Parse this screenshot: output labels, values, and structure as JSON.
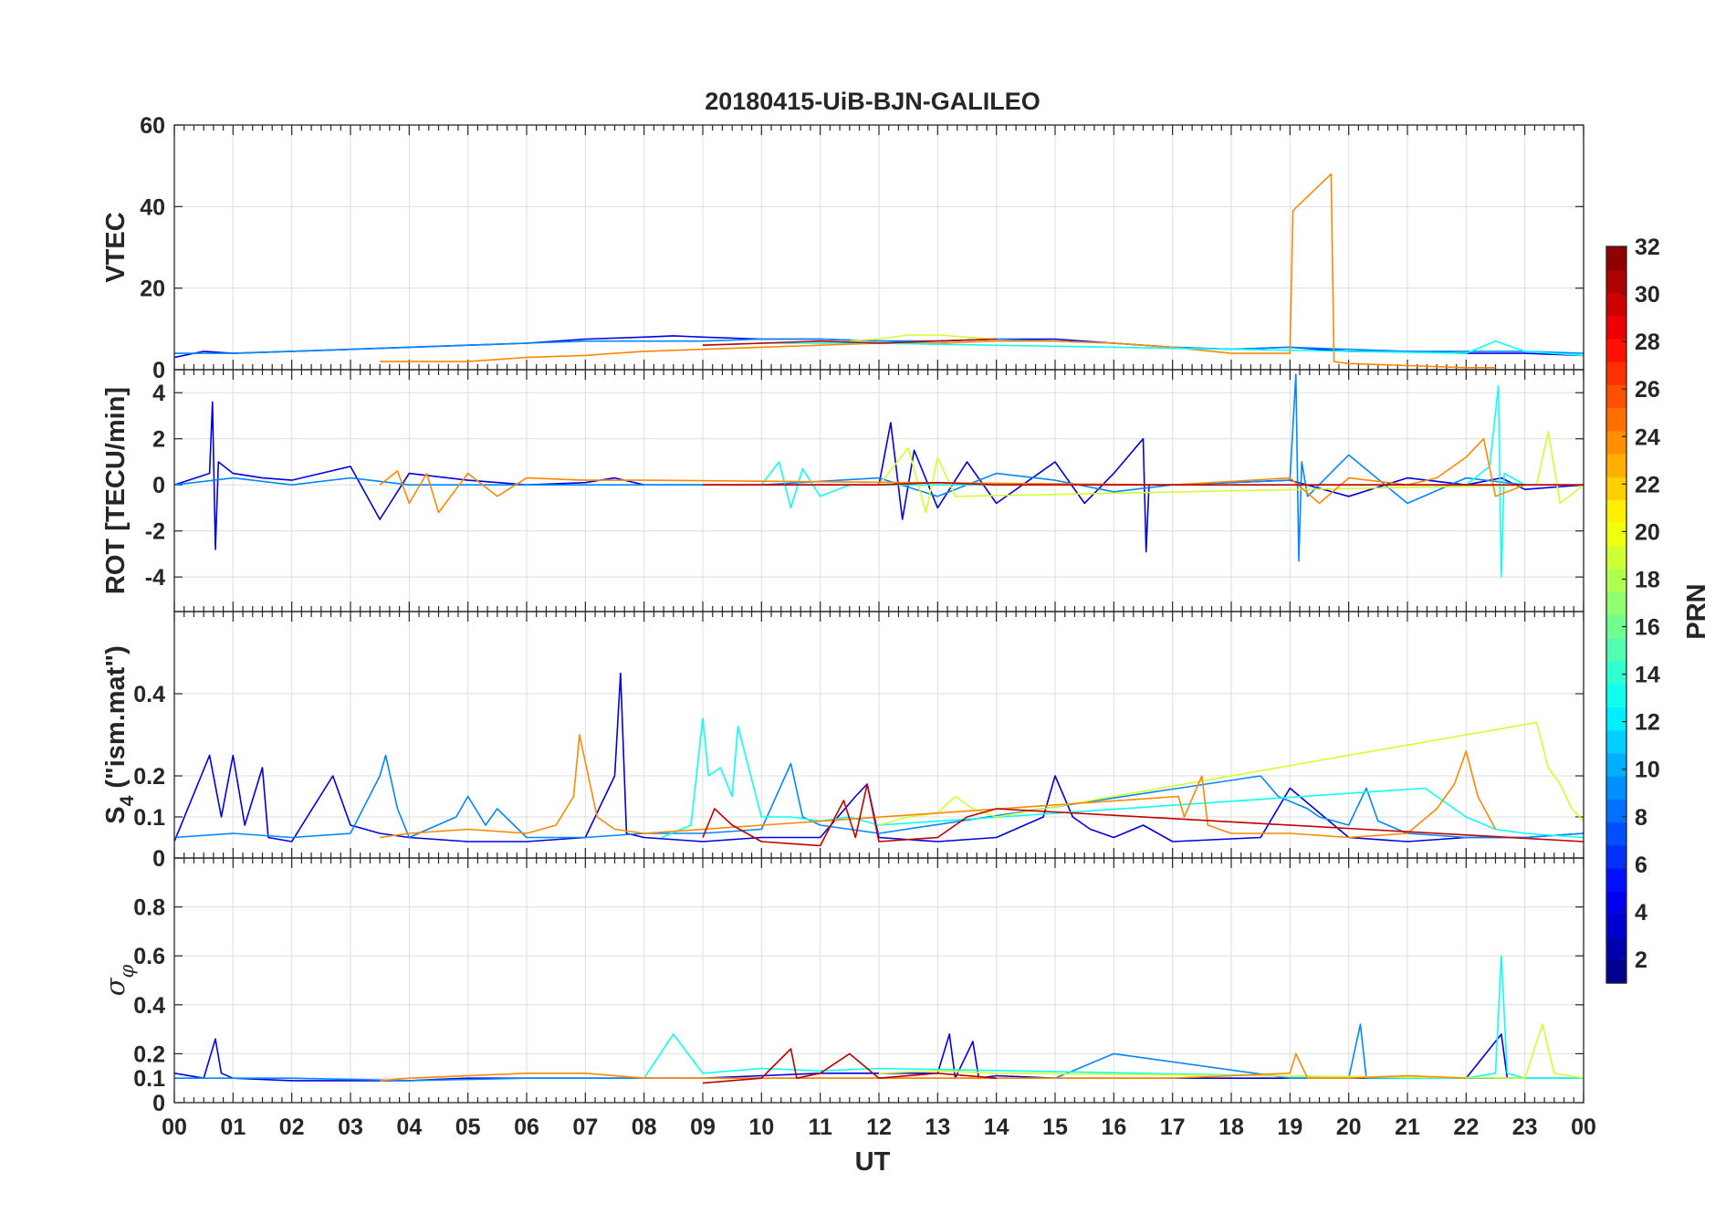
{
  "figure": {
    "title": "20180415-UiB-BJN-GALILEO",
    "xlabel": "UT",
    "x_ticks": [
      "00",
      "01",
      "02",
      "03",
      "04",
      "05",
      "06",
      "07",
      "08",
      "09",
      "10",
      "11",
      "12",
      "13",
      "14",
      "15",
      "16",
      "17",
      "18",
      "19",
      "20",
      "21",
      "22",
      "23",
      "00"
    ]
  },
  "colorbar": {
    "label": "PRN",
    "range": [
      1,
      32
    ],
    "ticks": [
      "2",
      "4",
      "6",
      "8",
      "10",
      "12",
      "14",
      "16",
      "18",
      "20",
      "22",
      "24",
      "26",
      "28",
      "30",
      "32"
    ],
    "colormap": "jet",
    "levels": 32
  },
  "chart_data": [
    {
      "type": "line",
      "panel": "vtec",
      "ylabel": "VTEC",
      "xlim": [
        0,
        24
      ],
      "ylim": [
        0,
        60
      ],
      "y_ticks": [
        "0",
        "20",
        "40",
        "60"
      ],
      "series": [
        {
          "name": "PRN 4",
          "prn": 4,
          "x": [
            0,
            0.5,
            1,
            2,
            3,
            4,
            5,
            6,
            7,
            8,
            8.5,
            9,
            10,
            11,
            12,
            13,
            14,
            15,
            16,
            17,
            18,
            19,
            20,
            21,
            22,
            23,
            24
          ],
          "y": [
            3,
            4.5,
            4,
            4.5,
            5,
            5.5,
            6,
            6.5,
            7.5,
            8,
            8.3,
            8,
            7.5,
            7.5,
            7,
            7,
            7.5,
            7.5,
            6.5,
            5.5,
            5,
            5.5,
            4.5,
            4.5,
            4,
            4,
            3.5
          ]
        },
        {
          "name": "PRN 9",
          "prn": 9,
          "x": [
            0,
            1,
            2,
            3,
            4,
            5,
            6,
            7,
            8,
            9,
            10,
            11,
            12,
            13,
            14,
            15,
            16,
            17,
            18,
            19,
            20,
            21,
            22,
            23,
            24
          ],
          "y": [
            4,
            4,
            4.5,
            5,
            5.5,
            6,
            6.5,
            7,
            7,
            7,
            7.5,
            7.5,
            7,
            7,
            7.5,
            7,
            6.5,
            5.5,
            5,
            5.5,
            5,
            4.5,
            4.5,
            4.5,
            4
          ]
        },
        {
          "name": "PRN 24",
          "prn": 24,
          "x": [
            3.5,
            4,
            5,
            6,
            7,
            7.5,
            8,
            9,
            10,
            11,
            12,
            13,
            14,
            15,
            16,
            17,
            18,
            19,
            19.05,
            19.7,
            19.72,
            19.75,
            20,
            21,
            22,
            22.5
          ],
          "y": [
            2,
            2,
            2,
            3,
            3.5,
            4,
            4.5,
            5,
            5.5,
            6,
            6.5,
            6.5,
            7,
            7,
            6.5,
            5.5,
            4,
            4,
            39,
            48,
            30,
            2,
            1.5,
            1,
            0.5,
            0.5
          ]
        },
        {
          "name": "PRN 19",
          "prn": 19,
          "x": [
            11.5,
            12,
            12.5,
            13,
            13.5,
            14
          ],
          "y": [
            7,
            7.5,
            8.5,
            8.5,
            8,
            7.5
          ]
        },
        {
          "name": "PRN 13",
          "prn": 13,
          "x": [
            9,
            10,
            11,
            12,
            22,
            22.5,
            23,
            24
          ],
          "y": [
            6,
            6.5,
            6.5,
            6.5,
            4,
            7,
            4.5,
            3.5
          ]
        },
        {
          "name": "PRN 30",
          "prn": 30,
          "x": [
            9,
            10,
            11,
            12,
            13,
            14
          ],
          "y": [
            6,
            6.5,
            7,
            6.5,
            7,
            7.5
          ]
        }
      ]
    },
    {
      "type": "line",
      "panel": "rot",
      "ylabel": "ROT [TECU/min]",
      "xlim": [
        0,
        24
      ],
      "ylim": [
        -5.5,
        5
      ],
      "y_ticks": [
        "-4",
        "-2",
        "0",
        "2",
        "4"
      ],
      "series": [
        {
          "name": "PRN 4",
          "prn": 4,
          "x": [
            0,
            0.6,
            0.65,
            0.7,
            0.75,
            1,
            1.5,
            2,
            3,
            3.5,
            4,
            5,
            6,
            7,
            7.5,
            8,
            12,
            12.2,
            12.4,
            12.6,
            13,
            13.5,
            14,
            15,
            15.5,
            16,
            16.5,
            16.55,
            16.6,
            17,
            19,
            20,
            21,
            22,
            22.6,
            23,
            24
          ],
          "y": [
            0,
            0.5,
            3.6,
            -2.8,
            1,
            0.5,
            0.3,
            0.2,
            0.8,
            -1.5,
            0.5,
            0.2,
            0,
            0.1,
            0.3,
            0,
            0,
            2.7,
            -1.5,
            1.5,
            -1,
            1,
            -0.8,
            1,
            -0.8,
            0.5,
            2,
            -2.9,
            0,
            0,
            0.2,
            -0.5,
            0.3,
            0,
            0.3,
            -0.2,
            0
          ]
        },
        {
          "name": "PRN 9",
          "prn": 9,
          "x": [
            0,
            1,
            2,
            3,
            4,
            10,
            12,
            13,
            14,
            15,
            16,
            17,
            19,
            19.1,
            19.15,
            19.2,
            19.3,
            20,
            21,
            22,
            23,
            24
          ],
          "y": [
            0,
            0.3,
            0,
            0.3,
            0,
            0,
            0.3,
            -0.5,
            0.5,
            0.2,
            -0.3,
            0,
            0.2,
            4.8,
            -3.3,
            1,
            -0.5,
            1.3,
            -0.8,
            0.3,
            0,
            0
          ]
        },
        {
          "name": "PRN 13",
          "prn": 13,
          "x": [
            10,
            10.3,
            10.5,
            10.7,
            11,
            11.5,
            22,
            22.4,
            22.55,
            22.6,
            22.65,
            23,
            24
          ],
          "y": [
            0,
            1,
            -1,
            0.7,
            -0.5,
            0,
            0,
            0.8,
            4.3,
            -4,
            0.5,
            0,
            0
          ]
        },
        {
          "name": "PRN 19",
          "prn": 19,
          "x": [
            12,
            12.5,
            12.8,
            13,
            13.3,
            23.2,
            23.4,
            23.6,
            24
          ],
          "y": [
            0,
            1.6,
            -1.2,
            1.2,
            -0.5,
            0,
            2.3,
            -0.8,
            0
          ]
        },
        {
          "name": "PRN 24",
          "prn": 24,
          "x": [
            3.5,
            3.8,
            4,
            4.3,
            4.5,
            5,
            5.5,
            6,
            7,
            8,
            17,
            19,
            19.5,
            20,
            21,
            21.5,
            22,
            22.3,
            22.5,
            23
          ],
          "y": [
            0,
            0.6,
            -0.8,
            0.5,
            -1.2,
            0.5,
            -0.5,
            0.3,
            0.2,
            0.2,
            0,
            0.3,
            -0.8,
            0.3,
            0,
            0.3,
            1.2,
            2,
            -0.5,
            0
          ]
        },
        {
          "name": "PRN 30",
          "prn": 30,
          "x": [
            9,
            10,
            11,
            12,
            13,
            14,
            24
          ],
          "y": [
            0,
            0,
            0,
            0,
            0.1,
            0,
            0
          ]
        }
      ]
    },
    {
      "type": "line",
      "panel": "s4",
      "ylabel": "S4 (\"ism.mat\")",
      "ylabel_main": "S",
      "ylabel_sub": "4",
      "ylabel_rest": " (\"ism.mat\")",
      "xlim": [
        0,
        24
      ],
      "ylim": [
        0,
        0.6
      ],
      "y_ticks": [
        "0",
        "0.1",
        "0.2",
        "0.4"
      ],
      "y_tick_values": [
        0,
        0.1,
        0.2,
        0.4
      ],
      "series": [
        {
          "name": "PRN 4",
          "prn": 4,
          "x": [
            0,
            0.6,
            0.8,
            1,
            1.2,
            1.5,
            1.6,
            2,
            2.7,
            3,
            3.5,
            4,
            5,
            6,
            7,
            7.5,
            7.6,
            7.7,
            8,
            9,
            10,
            11,
            11.6,
            11.8,
            12,
            13,
            14,
            14.8,
            15,
            15.3,
            15.6,
            16,
            16.5,
            17,
            18.5,
            19,
            20,
            21,
            22,
            23,
            24
          ],
          "y": [
            0.04,
            0.25,
            0.1,
            0.25,
            0.08,
            0.22,
            0.05,
            0.04,
            0.2,
            0.08,
            0.06,
            0.05,
            0.04,
            0.04,
            0.05,
            0.2,
            0.45,
            0.06,
            0.05,
            0.04,
            0.05,
            0.05,
            0.15,
            0.18,
            0.05,
            0.04,
            0.05,
            0.1,
            0.2,
            0.1,
            0.07,
            0.05,
            0.08,
            0.04,
            0.05,
            0.17,
            0.05,
            0.04,
            0.05,
            0.05,
            0.06
          ]
        },
        {
          "name": "PRN 9",
          "prn": 9,
          "x": [
            0,
            1,
            2,
            3,
            3.5,
            3.6,
            3.8,
            4,
            4.8,
            5,
            5.3,
            5.5,
            6,
            7,
            8,
            9,
            10,
            10.5,
            10.7,
            11,
            12,
            18.5,
            18.8,
            19.3,
            19.5,
            20,
            20.3,
            20.5,
            21,
            22,
            23,
            24
          ],
          "y": [
            0.05,
            0.06,
            0.05,
            0.06,
            0.2,
            0.25,
            0.12,
            0.05,
            0.1,
            0.15,
            0.08,
            0.12,
            0.05,
            0.05,
            0.06,
            0.06,
            0.07,
            0.23,
            0.1,
            0.08,
            0.06,
            0.2,
            0.15,
            0.12,
            0.1,
            0.08,
            0.17,
            0.09,
            0.06,
            0.05,
            0.05,
            0.06
          ]
        },
        {
          "name": "PRN 13",
          "prn": 13,
          "x": [
            8.3,
            8.8,
            9,
            9.1,
            9.3,
            9.5,
            9.6,
            10,
            10.5,
            11,
            11.5,
            12,
            21.3,
            21.6,
            22,
            22.5,
            23,
            24
          ],
          "y": [
            0.05,
            0.08,
            0.34,
            0.2,
            0.22,
            0.15,
            0.32,
            0.1,
            0.1,
            0.09,
            0.1,
            0.08,
            0.17,
            0.14,
            0.1,
            0.07,
            0.06,
            0.05
          ]
        },
        {
          "name": "PRN 19",
          "prn": 19,
          "x": [
            12,
            12.5,
            13,
            13.3,
            13.6,
            14,
            23.2,
            23.4,
            23.6,
            23.8,
            24
          ],
          "y": [
            0.08,
            0.1,
            0.11,
            0.15,
            0.12,
            0.1,
            0.33,
            0.22,
            0.18,
            0.12,
            0.09
          ]
        },
        {
          "name": "PRN 24",
          "prn": 24,
          "x": [
            3.5,
            4,
            5,
            6,
            6.5,
            6.8,
            6.9,
            7.2,
            7.5,
            8,
            17.1,
            17.2,
            17.5,
            17.6,
            18,
            19,
            20,
            21,
            21.5,
            21.8,
            22,
            22.2,
            22.5
          ],
          "y": [
            0.05,
            0.06,
            0.07,
            0.06,
            0.08,
            0.15,
            0.3,
            0.1,
            0.07,
            0.06,
            0.15,
            0.1,
            0.2,
            0.08,
            0.06,
            0.06,
            0.05,
            0.06,
            0.12,
            0.18,
            0.26,
            0.15,
            0.07
          ]
        },
        {
          "name": "PRN 30",
          "prn": 30,
          "x": [
            9,
            9.2,
            9.5,
            10,
            11,
            11.4,
            11.6,
            11.8,
            12,
            13,
            13.5,
            14,
            24
          ],
          "y": [
            0.05,
            0.12,
            0.08,
            0.04,
            0.03,
            0.14,
            0.05,
            0.18,
            0.04,
            0.05,
            0.1,
            0.12,
            0.04
          ]
        }
      ]
    },
    {
      "type": "line",
      "panel": "sigma_phi",
      "ylabel": "σ φ",
      "ylabel_main": "σ",
      "ylabel_sub": "φ",
      "xlim": [
        0,
        24
      ],
      "ylim": [
        0,
        1
      ],
      "y_ticks": [
        "0",
        "0.1",
        "0.2",
        "0.4",
        "0.6",
        "0.8"
      ],
      "y_tick_values": [
        0,
        0.1,
        0.2,
        0.4,
        0.6,
        0.8
      ],
      "series": [
        {
          "name": "PRN 4",
          "prn": 4,
          "x": [
            0,
            0.5,
            0.7,
            0.8,
            1,
            2,
            3,
            4,
            5,
            6,
            7,
            8,
            9,
            10,
            11,
            12,
            13,
            13.2,
            13.3,
            13.6,
            13.7,
            14,
            15,
            16,
            17,
            18,
            19,
            20,
            21,
            22,
            22.6,
            22.7,
            23,
            24
          ],
          "y": [
            0.12,
            0.1,
            0.26,
            0.12,
            0.1,
            0.09,
            0.09,
            0.09,
            0.1,
            0.1,
            0.1,
            0.1,
            0.1,
            0.11,
            0.12,
            0.12,
            0.12,
            0.28,
            0.1,
            0.25,
            0.1,
            0.11,
            0.1,
            0.1,
            0.1,
            0.1,
            0.1,
            0.1,
            0.1,
            0.1,
            0.28,
            0.1,
            0.1,
            0.1
          ]
        },
        {
          "name": "PRN 9",
          "prn": 9,
          "x": [
            0,
            2,
            4,
            6,
            8,
            10,
            12,
            15,
            16,
            19,
            20,
            20.2,
            20.3,
            21,
            24
          ],
          "y": [
            0.1,
            0.1,
            0.09,
            0.1,
            0.1,
            0.1,
            0.1,
            0.1,
            0.2,
            0.1,
            0.1,
            0.32,
            0.1,
            0.1,
            0.1
          ]
        },
        {
          "name": "PRN 13",
          "prn": 13,
          "x": [
            8,
            8.5,
            9,
            10,
            11,
            12,
            21,
            22,
            22.5,
            22.6,
            22.7,
            23,
            24
          ],
          "y": [
            0.1,
            0.28,
            0.12,
            0.14,
            0.13,
            0.14,
            0.1,
            0.1,
            0.12,
            0.6,
            0.12,
            0.1,
            0.1
          ]
        },
        {
          "name": "PRN 19",
          "prn": 19,
          "x": [
            12,
            13,
            14,
            23,
            23.3,
            23.5,
            24
          ],
          "y": [
            0.12,
            0.13,
            0.12,
            0.1,
            0.32,
            0.12,
            0.1
          ]
        },
        {
          "name": "PRN 24",
          "prn": 24,
          "x": [
            3.5,
            4,
            5,
            6,
            7,
            8,
            17,
            18,
            19,
            19.1,
            19.3,
            20,
            21,
            22
          ],
          "y": [
            0.09,
            0.1,
            0.11,
            0.12,
            0.12,
            0.1,
            0.1,
            0.11,
            0.12,
            0.2,
            0.1,
            0.1,
            0.11,
            0.1
          ]
        },
        {
          "name": "PRN 30",
          "prn": 30,
          "x": [
            9,
            10,
            10.5,
            10.6,
            11,
            11.5,
            12,
            13,
            14
          ],
          "y": [
            0.08,
            0.1,
            0.22,
            0.1,
            0.12,
            0.2,
            0.1,
            0.12,
            0.1
          ]
        }
      ]
    }
  ]
}
